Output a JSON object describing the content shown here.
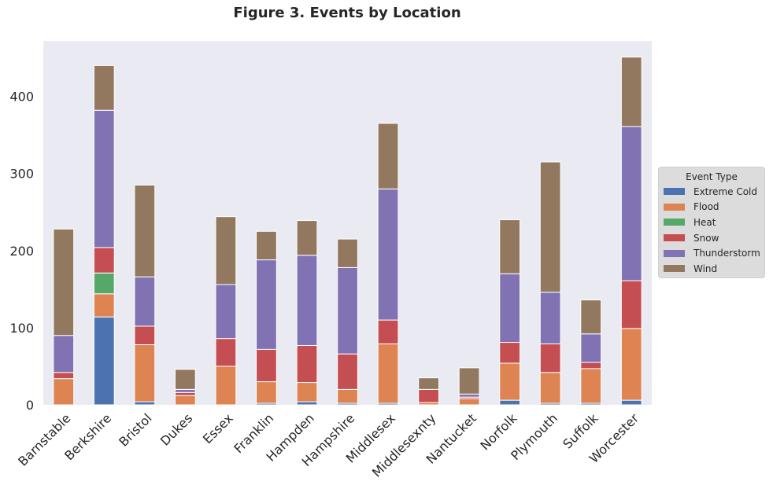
{
  "chart_data": {
    "type": "bar",
    "stacked": true,
    "title": "Figure 3. Events by Location",
    "xlabel": "",
    "ylabel": "",
    "ylim": [
      0,
      472
    ],
    "yticks": [
      0,
      100,
      200,
      300,
      400
    ],
    "grid": false,
    "legend_title": "Event Type",
    "legend_position": "center-right",
    "categories": [
      "Barnstable",
      "Berkshire",
      "Bristol",
      "Dukes",
      "Essex",
      "Franklin",
      "Hampden",
      "Hampshire",
      "Middlesex",
      "Middlesexnty",
      "Nantucket",
      "Norfolk",
      "Plymouth",
      "Suffolk",
      "Worcester"
    ],
    "series": [
      {
        "name": "Extreme Cold",
        "color": "#4c72b0",
        "values": [
          0,
          114,
          4,
          0,
          0,
          2,
          4,
          2,
          2,
          0,
          0,
          6,
          2,
          2,
          6
        ]
      },
      {
        "name": "Flood",
        "color": "#dd8452",
        "values": [
          34,
          30,
          74,
          12,
          50,
          28,
          25,
          18,
          77,
          3,
          8,
          48,
          40,
          45,
          93
        ]
      },
      {
        "name": "Heat",
        "color": "#55a868",
        "values": [
          0,
          27,
          0,
          0,
          0,
          0,
          0,
          0,
          0,
          0,
          0,
          0,
          0,
          0,
          0
        ]
      },
      {
        "name": "Snow",
        "color": "#c44e52",
        "values": [
          8,
          33,
          24,
          4,
          36,
          42,
          48,
          46,
          31,
          17,
          2,
          27,
          37,
          8,
          62
        ]
      },
      {
        "name": "Thunderstorm",
        "color": "#8172b3",
        "values": [
          48,
          178,
          64,
          4,
          70,
          116,
          117,
          112,
          170,
          0,
          4,
          89,
          67,
          37,
          200
        ]
      },
      {
        "name": "Wind",
        "color": "#937860",
        "values": [
          138,
          58,
          119,
          26,
          88,
          37,
          45,
          37,
          85,
          15,
          34,
          70,
          169,
          44,
          90
        ]
      }
    ]
  }
}
